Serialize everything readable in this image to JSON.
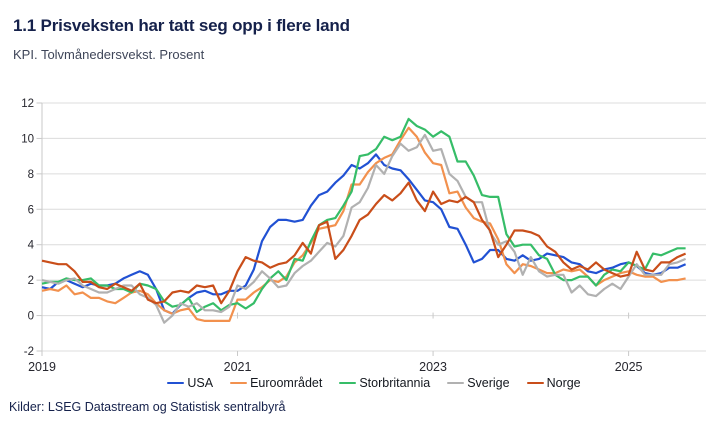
{
  "header": {
    "title": "1.1 Prisveksten har tatt seg opp i flere land",
    "subtitle": "KPI. Tolvmånedersvekst. Prosent"
  },
  "footer": {
    "source": "Kilder: LSEG Datastream og Statistisk sentralbyrå"
  },
  "colors": {
    "title_text": "#15214b",
    "subtitle_text": "#3f4659",
    "axis_text": "#26262e",
    "gridline": "#dcdcdc",
    "axis_line": "#c9c9c9"
  },
  "chart_data": {
    "type": "line",
    "title": "1.1 Prisveksten har tatt seg opp i flere land",
    "subtitle": "KPI. Tolvmånedersvekst. Prosent",
    "x_unit": "month",
    "x_start": "2019-01",
    "x_end": "2025-08",
    "x_ticks": [
      "2019",
      "2021",
      "2023",
      "2025"
    ],
    "y_ticks": [
      -2,
      0,
      2,
      4,
      6,
      8,
      10,
      12
    ],
    "ylim": [
      -2,
      12
    ],
    "grid": "horizontal",
    "legend_position": "bottom",
    "series": [
      {
        "name": "USA",
        "color": "#2151d3",
        "values": [
          1.6,
          1.5,
          1.9,
          2.0,
          1.8,
          1.6,
          1.8,
          1.7,
          1.7,
          1.8,
          2.1,
          2.3,
          2.5,
          2.3,
          1.5,
          0.3,
          0.1,
          0.6,
          1.0,
          1.3,
          1.4,
          1.2,
          1.2,
          1.4,
          1.4,
          1.7,
          2.6,
          4.2,
          5.0,
          5.4,
          5.4,
          5.3,
          5.4,
          6.2,
          6.8,
          7.0,
          7.5,
          7.9,
          8.5,
          8.3,
          8.6,
          9.1,
          8.5,
          8.3,
          8.2,
          7.7,
          7.1,
          6.5,
          6.4,
          6.0,
          5.0,
          4.9,
          4.0,
          3.0,
          3.2,
          3.7,
          3.7,
          3.2,
          3.1,
          3.4,
          3.1,
          3.2,
          3.5,
          3.4,
          3.3,
          3.0,
          2.9,
          2.5,
          2.4,
          2.6,
          2.7,
          2.9,
          3.0,
          2.8,
          2.4,
          2.3,
          2.4,
          2.7,
          2.7,
          2.9
        ]
      },
      {
        "name": "Euroområdet",
        "color": "#f2914e",
        "values": [
          1.4,
          1.5,
          1.4,
          1.7,
          1.2,
          1.3,
          1.0,
          1.0,
          0.8,
          0.7,
          1.0,
          1.3,
          1.4,
          1.2,
          0.7,
          0.3,
          0.1,
          0.3,
          0.4,
          -0.2,
          -0.3,
          -0.3,
          -0.3,
          -0.3,
          0.9,
          0.9,
          1.3,
          1.6,
          2.0,
          1.9,
          2.2,
          3.0,
          3.4,
          4.1,
          4.9,
          5.0,
          5.1,
          5.9,
          7.4,
          7.4,
          8.1,
          8.6,
          8.9,
          9.1,
          9.9,
          10.6,
          10.1,
          9.2,
          8.6,
          8.5,
          6.9,
          7.0,
          6.1,
          5.5,
          5.3,
          5.2,
          4.3,
          2.9,
          2.4,
          2.9,
          2.8,
          2.6,
          2.4,
          2.4,
          2.6,
          2.5,
          2.6,
          2.2,
          1.7,
          2.0,
          2.2,
          2.4,
          2.5,
          2.3,
          2.2,
          2.2,
          1.9,
          2.0,
          2.0,
          2.1
        ]
      },
      {
        "name": "Storbritannia",
        "color": "#36bd68",
        "values": [
          1.8,
          1.9,
          1.9,
          2.1,
          2.0,
          2.0,
          2.1,
          1.7,
          1.7,
          1.5,
          1.5,
          1.3,
          1.8,
          1.7,
          1.5,
          0.8,
          0.5,
          0.6,
          1.0,
          0.2,
          0.5,
          0.7,
          0.3,
          0.6,
          0.7,
          0.4,
          0.7,
          1.5,
          2.1,
          2.5,
          2.0,
          3.2,
          3.1,
          4.2,
          5.1,
          5.4,
          5.5,
          6.2,
          7.0,
          9.0,
          9.1,
          9.4,
          10.1,
          9.9,
          10.1,
          11.1,
          10.7,
          10.5,
          10.1,
          10.4,
          10.1,
          8.7,
          8.7,
          7.9,
          6.8,
          6.7,
          6.7,
          4.6,
          3.9,
          4.0,
          4.0,
          3.4,
          3.2,
          2.3,
          2.0,
          2.0,
          2.2,
          2.2,
          1.7,
          2.3,
          2.6,
          2.5,
          3.0,
          2.8,
          2.6,
          3.5,
          3.4,
          3.6,
          3.8,
          3.8
        ]
      },
      {
        "name": "Sverige",
        "color": "#b1b1b1",
        "values": [
          2.0,
          1.9,
          1.8,
          2.0,
          2.1,
          1.7,
          1.5,
          1.3,
          1.3,
          1.5,
          1.7,
          1.7,
          1.2,
          1.0,
          0.6,
          -0.4,
          0.0,
          0.7,
          0.5,
          0.7,
          0.3,
          0.3,
          0.2,
          0.5,
          1.7,
          1.5,
          1.9,
          2.5,
          2.1,
          1.6,
          1.7,
          2.4,
          2.8,
          3.1,
          3.6,
          4.1,
          3.9,
          4.5,
          6.1,
          6.4,
          7.2,
          8.5,
          8.0,
          9.0,
          9.7,
          9.3,
          9.5,
          10.2,
          9.3,
          9.4,
          8.0,
          7.6,
          6.7,
          6.4,
          6.4,
          4.7,
          4.0,
          4.2,
          3.6,
          2.3,
          3.3,
          2.5,
          2.2,
          2.3,
          2.3,
          1.3,
          1.7,
          1.2,
          1.1,
          1.5,
          1.8,
          1.5,
          2.2,
          2.9,
          2.3,
          2.3,
          2.3,
          2.9,
          3.0,
          3.2
        ]
      },
      {
        "name": "Norge",
        "color": "#c94e1a",
        "values": [
          3.1,
          3.0,
          2.9,
          2.9,
          2.5,
          1.9,
          1.9,
          1.6,
          1.5,
          1.8,
          1.6,
          1.4,
          1.8,
          0.9,
          0.7,
          0.8,
          1.3,
          1.4,
          1.3,
          1.7,
          1.6,
          1.7,
          0.7,
          1.4,
          2.5,
          3.3,
          3.1,
          3.0,
          2.7,
          2.9,
          3.0,
          3.4,
          4.1,
          3.5,
          5.1,
          5.3,
          3.2,
          3.7,
          4.5,
          5.4,
          5.7,
          6.3,
          6.8,
          6.5,
          6.9,
          7.5,
          6.5,
          5.9,
          7.0,
          6.3,
          6.5,
          6.4,
          6.7,
          6.4,
          5.4,
          4.8,
          3.3,
          4.0,
          4.8,
          4.8,
          4.7,
          4.5,
          3.9,
          3.6,
          3.0,
          2.6,
          2.8,
          2.6,
          3.0,
          2.6,
          2.4,
          2.2,
          2.3,
          3.6,
          2.6,
          2.5,
          3.0,
          3.0,
          3.3,
          3.5
        ]
      }
    ]
  }
}
